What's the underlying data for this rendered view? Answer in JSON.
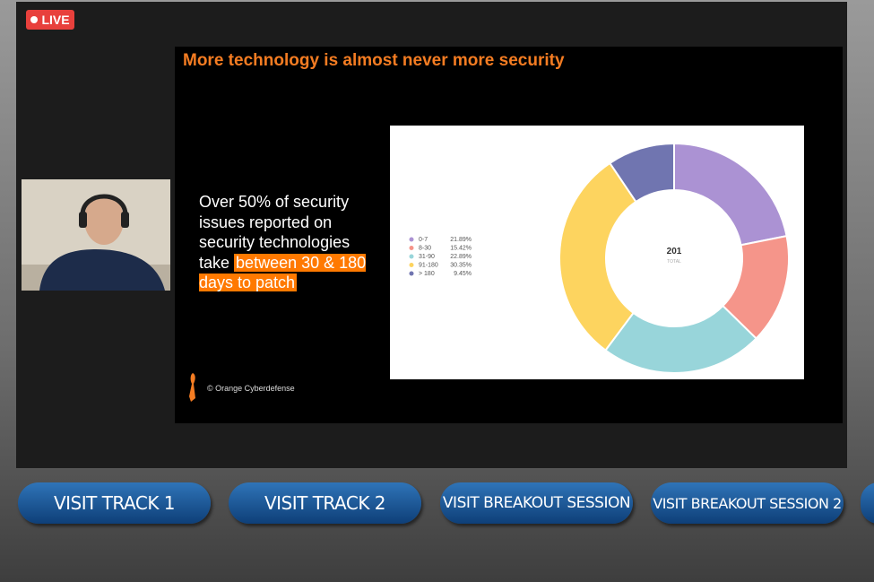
{
  "live_badge": "LIVE",
  "slide": {
    "title": "More technology is almost never more security",
    "text": "Over 50% of security issues reported on security technologies take",
    "highlight": "between 30 & 180 days to patch",
    "footer": "© Orange Cyberdefense",
    "chart": {
      "type": "pie",
      "categories": [
        "0-7",
        "8-30",
        "31-90",
        "91-180",
        "> 180"
      ],
      "values": [
        21.89,
        15.42,
        22.89,
        30.35,
        9.45
      ],
      "value_labels": [
        "21.89%",
        "15.42%",
        "22.89%",
        "30.35%",
        "9.45%"
      ],
      "colors": [
        "#ab92d3",
        "#f5958a",
        "#98d5da",
        "#fdd45f",
        "#7075b0"
      ],
      "total": 201,
      "total_label": "TOTAL"
    }
  },
  "buttons": [
    "VISIT TRACK 1",
    "VISIT TRACK 2",
    "VISIT BREAKOUT SESSION",
    "VISIT BREAKOUT SESSION 2"
  ]
}
